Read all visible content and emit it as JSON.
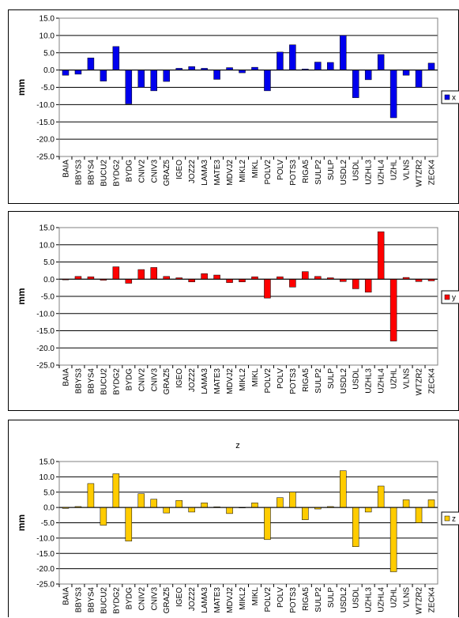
{
  "chart_data": [
    {
      "type": "bar",
      "title": "",
      "xlabel": "",
      "ylabel": "mm",
      "ylim": [
        -25,
        15
      ],
      "yticks": [
        "15.0",
        "10.0",
        "5.0",
        "0.0",
        "-5.0",
        "-10.0",
        "-15.0",
        "-20.0",
        "-25.0"
      ],
      "grid": true,
      "legend_position": "right",
      "color": "#0000ee",
      "categories": [
        "BAIA",
        "BBYS3",
        "BBYS4",
        "BUCU2",
        "BYDG2",
        "BYDG",
        "CNIV2",
        "CNIV3",
        "GRAZ5",
        "IGEO",
        "JOZ22",
        "LAMA3",
        "MATE3",
        "MDVJ2",
        "MIKL2",
        "MIKL",
        "POLV2",
        "POLV",
        "POTS3",
        "RIGA5",
        "SULP2",
        "SULP",
        "USDL2",
        "USDL",
        "UZHL3",
        "UZHL4",
        "UZHL",
        "VLNS",
        "WTZR2",
        "ZECK4"
      ],
      "series": [
        {
          "name": "x",
          "values": [
            -1.5,
            -1.2,
            3.5,
            -3.2,
            6.8,
            -9.8,
            -5.0,
            -6.0,
            -3.3,
            0.5,
            1.0,
            0.5,
            -2.7,
            0.7,
            -0.8,
            0.8,
            -6.0,
            5.2,
            7.3,
            0.3,
            2.3,
            2.2,
            10.0,
            -8.0,
            -2.8,
            4.5,
            -13.8,
            -1.5,
            -5.0,
            2.0
          ]
        }
      ]
    },
    {
      "type": "bar",
      "title": "",
      "xlabel": "",
      "ylabel": "mm",
      "ylim": [
        -25,
        15
      ],
      "yticks": [
        "15.0",
        "10.0",
        "5.0",
        "0.0",
        "-5.0",
        "-10.0",
        "-15.0",
        "-20.0",
        "-25.0"
      ],
      "grid": true,
      "legend_position": "right",
      "color": "#ff0000",
      "categories": [
        "BAIA",
        "BBYS3",
        "BBYS4",
        "BUCU2",
        "BYDG2",
        "BYDG",
        "CNIV2",
        "CNIV3",
        "GRAZ5",
        "IGEO",
        "JOZ22",
        "LAMA3",
        "MATE3",
        "MDVJ2",
        "MIKL2",
        "MIKL",
        "POLV2",
        "POLV",
        "POTS3",
        "RIGA5",
        "SULP2",
        "SULP",
        "USDL2",
        "USDL",
        "UZHL3",
        "UZHL4",
        "UZHL",
        "VLNS",
        "WTZR2",
        "ZECK4"
      ],
      "series": [
        {
          "name": "y",
          "values": [
            -0.2,
            0.8,
            0.7,
            -0.3,
            3.6,
            -1.2,
            2.8,
            3.4,
            0.8,
            0.4,
            -0.8,
            1.6,
            1.2,
            -1.0,
            -0.8,
            0.7,
            -5.5,
            0.7,
            -2.3,
            2.2,
            0.8,
            0.4,
            -0.7,
            -2.8,
            -3.8,
            13.8,
            -18.0,
            0.5,
            -0.7,
            -0.5
          ]
        }
      ]
    },
    {
      "type": "bar",
      "title": "z",
      "xlabel": "",
      "ylabel": "mm",
      "ylim": [
        -25,
        15
      ],
      "yticks": [
        "15.0",
        "10.0",
        "5.0",
        "0.0",
        "-5.0",
        "-10.0",
        "-15.0",
        "-20.0",
        "-25.0"
      ],
      "grid": true,
      "legend_position": "right",
      "color": "#ffcc00",
      "categories": [
        "BAIA",
        "BBYS3",
        "BBYS4",
        "BUCU2",
        "BYDG2",
        "BYDG",
        "CNIV2",
        "CNIV3",
        "GRAZ5",
        "IGEO",
        "JOZ22",
        "LAMA3",
        "MATE3",
        "MDVJ2",
        "MIKL2",
        "MIKL",
        "POLV2",
        "POLV",
        "POTS3",
        "RIGA5",
        "SULP2",
        "SULP",
        "USDL2",
        "USDL",
        "UZHL3",
        "UZHL4",
        "UZHL",
        "VLNS",
        "WTZR2",
        "ZECK4"
      ],
      "series": [
        {
          "name": "z",
          "values": [
            -0.3,
            0.3,
            7.8,
            -5.8,
            11.0,
            -11.0,
            4.5,
            2.7,
            -1.8,
            2.3,
            -1.5,
            1.5,
            0.2,
            -2.0,
            0.0,
            1.5,
            -10.5,
            3.2,
            5.0,
            -4.0,
            -0.5,
            0.3,
            12.0,
            -12.8,
            -1.5,
            7.0,
            -21.0,
            2.5,
            -5.0,
            2.5
          ]
        }
      ]
    }
  ]
}
